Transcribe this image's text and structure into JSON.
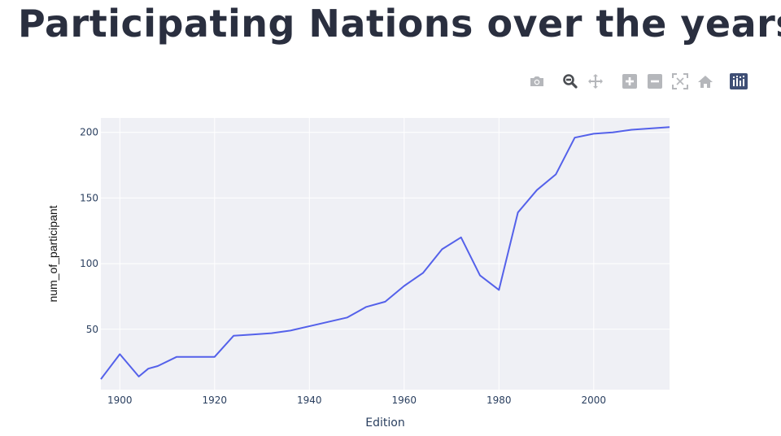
{
  "page": {
    "title": "Participating Nations over the years"
  },
  "modebar": {
    "buttons": [
      {
        "icon": "camera-icon",
        "label": "Download plot as a png"
      },
      {
        "icon": "zoom-icon",
        "label": "Zoom"
      },
      {
        "icon": "pan-icon",
        "label": "Pan"
      },
      {
        "icon": "zoom-in-icon",
        "label": "Zoom in"
      },
      {
        "icon": "zoom-out-icon",
        "label": "Zoom out"
      },
      {
        "icon": "autoscale-icon",
        "label": "Autoscale"
      },
      {
        "icon": "reset-axes-icon",
        "label": "Reset axes"
      },
      {
        "icon": "plotly-logo-icon",
        "label": "Produced with Plotly"
      }
    ]
  },
  "colors": {
    "line": "#5461ea",
    "plot_bg": "#eff0f5",
    "grid": "#ffffff",
    "text": "#2a3f5f",
    "title": "#2a2f3f"
  },
  "chart_data": {
    "type": "line",
    "title": "Participating Nations over the years",
    "xlabel": "Edition",
    "ylabel": "num_of_participant",
    "xlim": [
      1896,
      2016
    ],
    "ylim": [
      4,
      211
    ],
    "xticks": [
      1900,
      1920,
      1940,
      1960,
      1980,
      2000
    ],
    "yticks": [
      50,
      100,
      150,
      200
    ],
    "grid": true,
    "series": [
      {
        "x": [
          1896,
          1900,
          1904,
          1906,
          1908,
          1912,
          1920,
          1924,
          1928,
          1932,
          1936,
          1948,
          1952,
          1956,
          1960,
          1964,
          1968,
          1972,
          1976,
          1980,
          1984,
          1988,
          1992,
          1996,
          2000,
          2004,
          2008,
          2012,
          2016
        ],
        "y": [
          12,
          31,
          14,
          20,
          22,
          29,
          29,
          45,
          46,
          47,
          49,
          59,
          67,
          71,
          83,
          93,
          111,
          120,
          91,
          80,
          139,
          156,
          168,
          196,
          199,
          200,
          202,
          203,
          204
        ]
      }
    ]
  }
}
